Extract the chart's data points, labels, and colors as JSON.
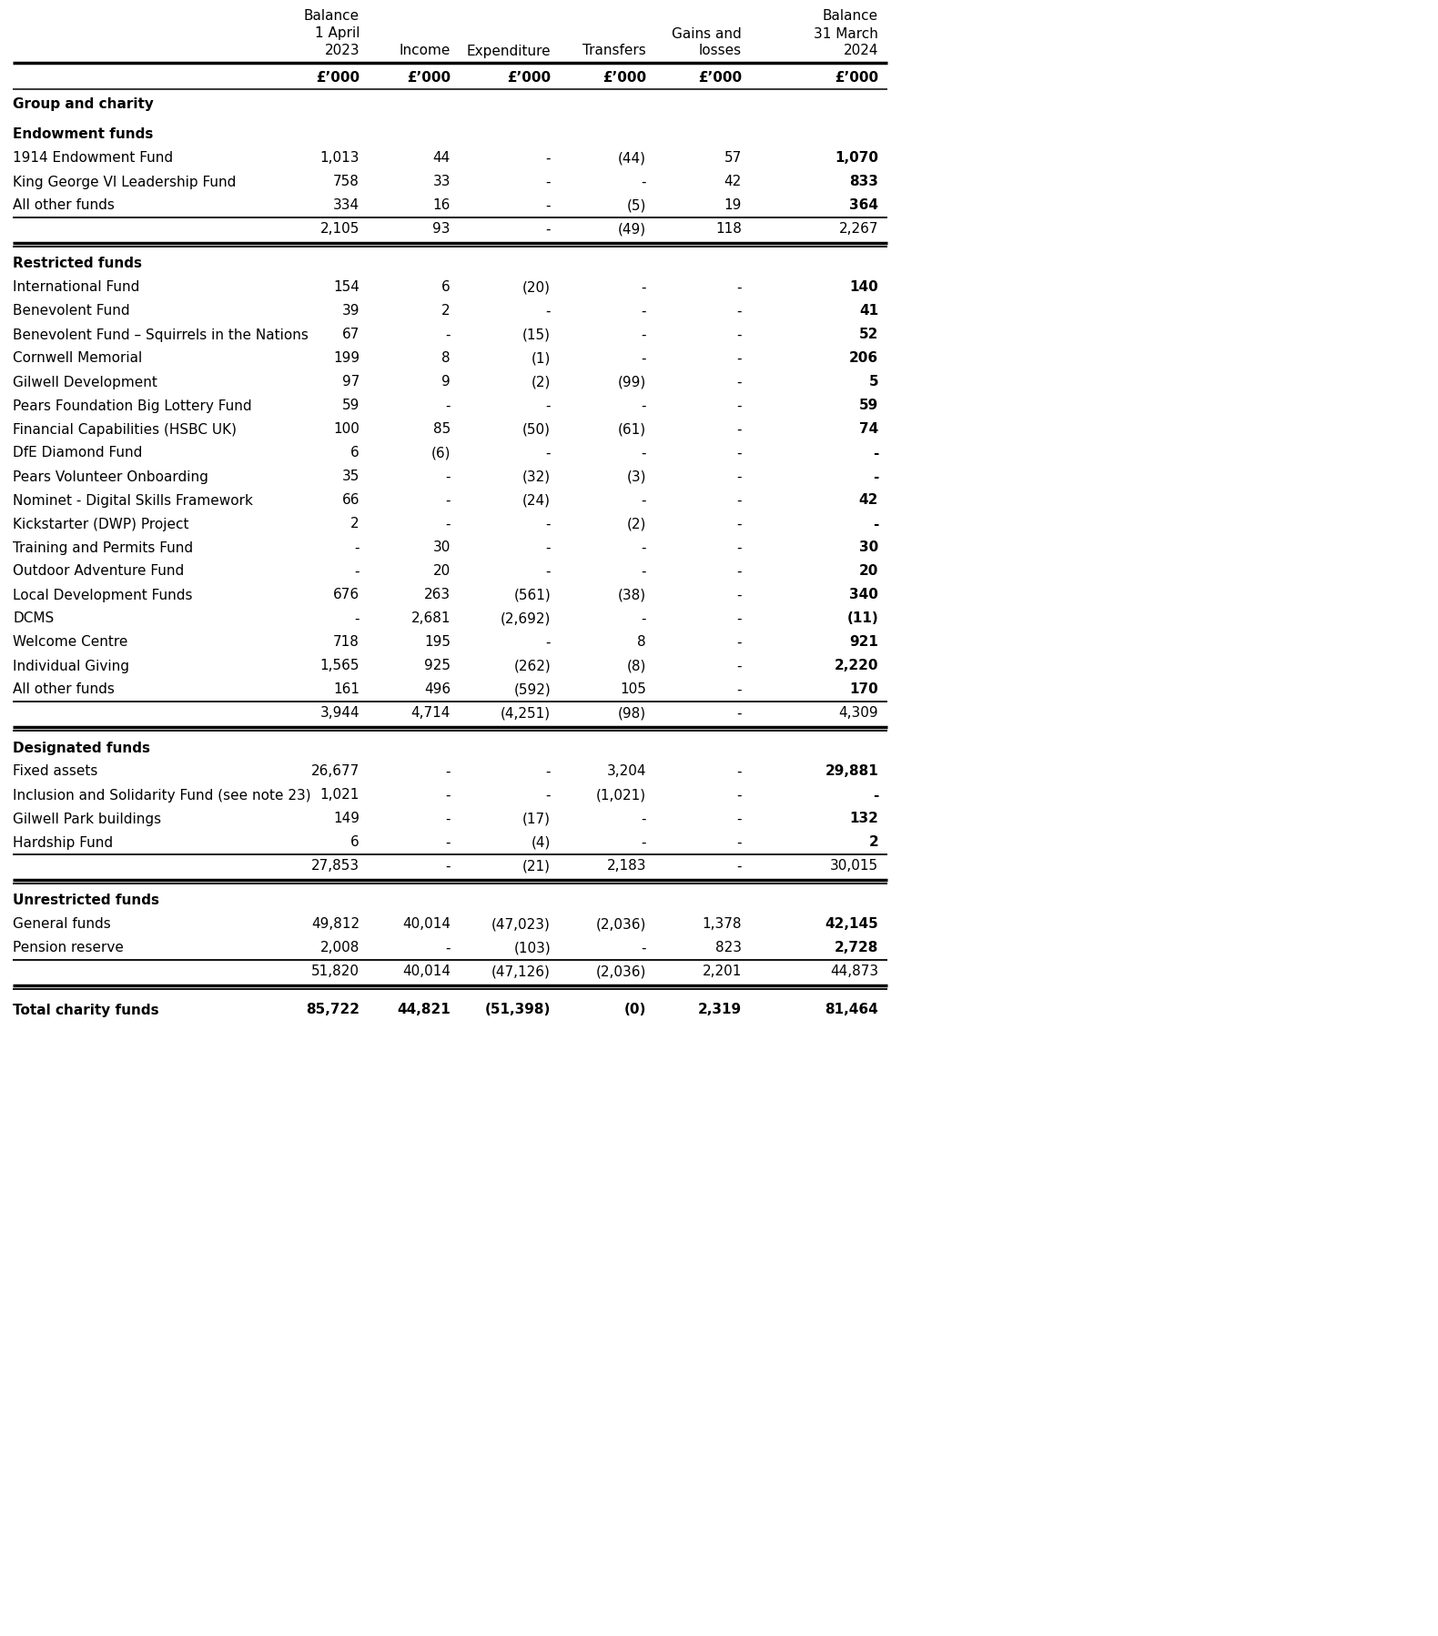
{
  "col_headers": [
    [
      "Balance",
      "",
      "2023"
    ],
    [
      "",
      "",
      "Income"
    ],
    [
      "",
      "",
      "Expenditure"
    ],
    [
      "",
      "",
      "Transfers"
    ],
    [
      "Gains and",
      "losses",
      ""
    ],
    [
      "Balance",
      "31 March",
      "2024"
    ]
  ],
  "col_subheaders": [
    "£’000",
    "£’000",
    "£’000",
    "£’000",
    "£’000",
    "£’000"
  ],
  "header_line2": [
    "1 April",
    "",
    "",
    "",
    "",
    ""
  ],
  "sections": [
    {
      "section_title": "Endowment funds",
      "rows": [
        {
          "label": "1914 Endowment Fund",
          "vals": [
            "1,013",
            "44",
            "-",
            "(44)",
            "57",
            "1,070"
          ],
          "bold_last": true
        },
        {
          "label": "King George VI Leadership Fund",
          "vals": [
            "758",
            "33",
            "-",
            "-",
            "42",
            "833"
          ],
          "bold_last": true
        },
        {
          "label": "All other funds",
          "vals": [
            "334",
            "16",
            "-",
            "(5)",
            "19",
            "364"
          ],
          "bold_last": true,
          "underline": true
        }
      ],
      "subtotal": {
        "vals": [
          "2,105",
          "93",
          "-",
          "(49)",
          "118",
          "2,267"
        ]
      }
    },
    {
      "section_title": "Restricted funds",
      "rows": [
        {
          "label": "International Fund",
          "vals": [
            "154",
            "6",
            "(20)",
            "-",
            "-",
            "140"
          ],
          "bold_last": true
        },
        {
          "label": "Benevolent Fund",
          "vals": [
            "39",
            "2",
            "-",
            "-",
            "-",
            "41"
          ],
          "bold_last": true
        },
        {
          "label": "Benevolent Fund – Squirrels in the Nations",
          "vals": [
            "67",
            "-",
            "(15)",
            "-",
            "-",
            "52"
          ],
          "bold_last": true
        },
        {
          "label": "Cornwell Memorial",
          "vals": [
            "199",
            "8",
            "(1)",
            "-",
            "-",
            "206"
          ],
          "bold_last": true
        },
        {
          "label": "Gilwell Development",
          "vals": [
            "97",
            "9",
            "(2)",
            "(99)",
            "-",
            "5"
          ],
          "bold_last": true
        },
        {
          "label": "Pears Foundation Big Lottery Fund",
          "vals": [
            "59",
            "-",
            "-",
            "-",
            "-",
            "59"
          ],
          "bold_last": true
        },
        {
          "label": "Financial Capabilities (HSBC UK)",
          "vals": [
            "100",
            "85",
            "(50)",
            "(61)",
            "-",
            "74"
          ],
          "bold_last": true
        },
        {
          "label": "DfE Diamond Fund",
          "vals": [
            "6",
            "(6)",
            "-",
            "-",
            "-",
            "-"
          ],
          "bold_last": true
        },
        {
          "label": "Pears Volunteer Onboarding",
          "vals": [
            "35",
            "-",
            "(32)",
            "(3)",
            "-",
            "-"
          ],
          "bold_last": true
        },
        {
          "label": "Nominet - Digital Skills Framework",
          "vals": [
            "66",
            "-",
            "(24)",
            "-",
            "-",
            "42"
          ],
          "bold_last": true
        },
        {
          "label": "Kickstarter (DWP) Project",
          "vals": [
            "2",
            "-",
            "-",
            "(2)",
            "-",
            "-"
          ],
          "bold_last": true
        },
        {
          "label": "Training and Permits Fund",
          "vals": [
            "-",
            "30",
            "-",
            "-",
            "-",
            "30"
          ],
          "bold_last": true
        },
        {
          "label": "Outdoor Adventure Fund",
          "vals": [
            "-",
            "20",
            "-",
            "-",
            "-",
            "20"
          ],
          "bold_last": true
        },
        {
          "label": "Local Development Funds",
          "vals": [
            "676",
            "263",
            "(561)",
            "(38)",
            "-",
            "340"
          ],
          "bold_last": true
        },
        {
          "label": "DCMS",
          "vals": [
            "-",
            "2,681",
            "(2,692)",
            "-",
            "-",
            "(11)"
          ],
          "bold_last": true
        },
        {
          "label": "Welcome Centre",
          "vals": [
            "718",
            "195",
            "-",
            "8",
            "-",
            "921"
          ],
          "bold_last": true
        },
        {
          "label": "Individual Giving",
          "vals": [
            "1,565",
            "925",
            "(262)",
            "(8)",
            "-",
            "2,220"
          ],
          "bold_last": true
        },
        {
          "label": "All other funds",
          "vals": [
            "161",
            "496",
            "(592)",
            "105",
            "-",
            "170"
          ],
          "bold_last": true,
          "underline": true
        }
      ],
      "subtotal": {
        "vals": [
          "3,944",
          "4,714",
          "(4,251)",
          "(98)",
          "-",
          "4,309"
        ]
      }
    },
    {
      "section_title": "Designated funds",
      "rows": [
        {
          "label": "Fixed assets",
          "vals": [
            "26,677",
            "-",
            "-",
            "3,204",
            "-",
            "29,881"
          ],
          "bold_last": true
        },
        {
          "label": "Inclusion and Solidarity Fund (see note 23)",
          "vals": [
            "1,021",
            "-",
            "-",
            "(1,021)",
            "-",
            "-"
          ],
          "bold_last": true
        },
        {
          "label": "Gilwell Park buildings",
          "vals": [
            "149",
            "-",
            "(17)",
            "-",
            "-",
            "132"
          ],
          "bold_last": true
        },
        {
          "label": "Hardship Fund",
          "vals": [
            "6",
            "-",
            "(4)",
            "-",
            "-",
            "2"
          ],
          "bold_last": true,
          "underline": true
        }
      ],
      "subtotal": {
        "vals": [
          "27,853",
          "-",
          "(21)",
          "2,183",
          "-",
          "30,015"
        ]
      }
    },
    {
      "section_title": "Unrestricted funds",
      "rows": [
        {
          "label": "General funds",
          "vals": [
            "49,812",
            "40,014",
            "(47,023)",
            "(2,036)",
            "1,378",
            "42,145"
          ],
          "bold_last": true
        },
        {
          "label": "Pension reserve",
          "vals": [
            "2,008",
            "-",
            "(103)",
            "-",
            "823",
            "2,728"
          ],
          "bold_last": true,
          "underline": true
        }
      ],
      "subtotal": {
        "vals": [
          "51,820",
          "40,014",
          "(47,126)",
          "(2,036)",
          "2,201",
          "44,873"
        ]
      }
    }
  ],
  "total_row": {
    "label": "Total charity funds",
    "vals": [
      "85,722",
      "44,821",
      "(51,398)",
      "(0)",
      "2,319",
      "81,464"
    ]
  },
  "top_label": "Group and charity",
  "bg_color": "#ffffff",
  "text_color": "#000000"
}
